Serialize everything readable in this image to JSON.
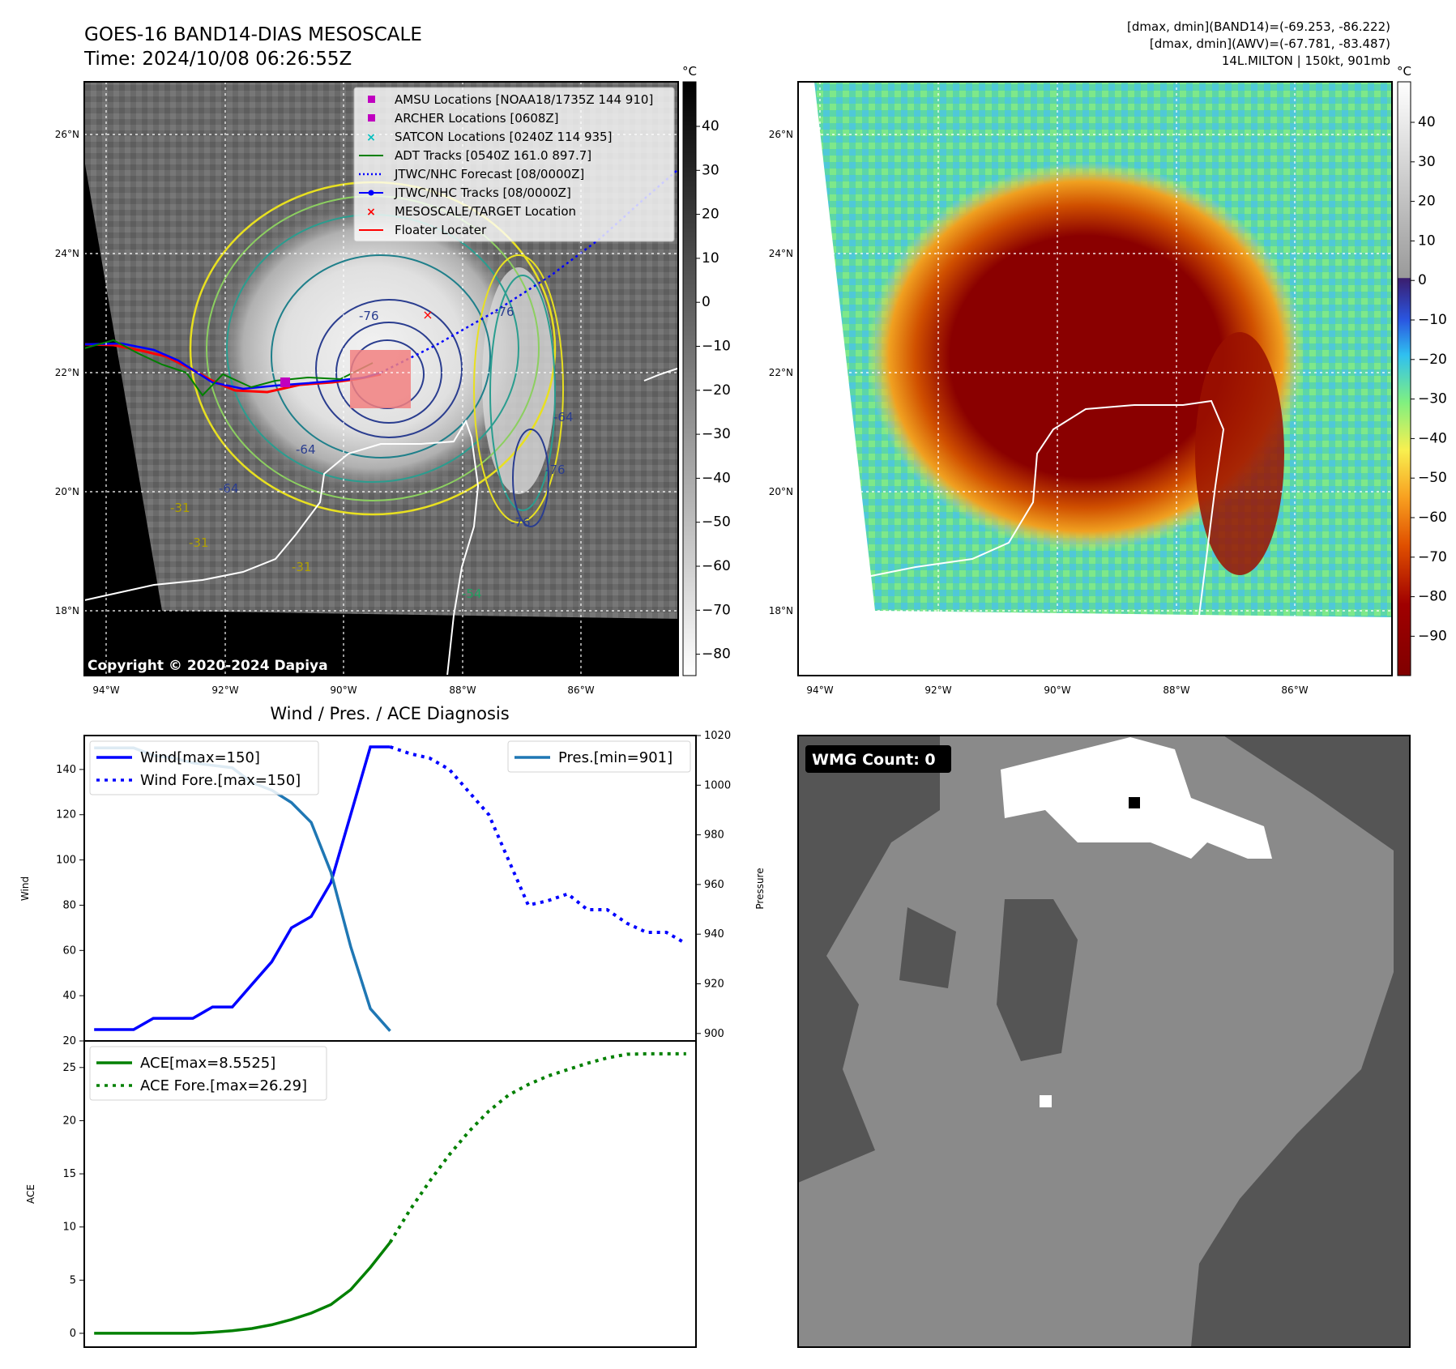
{
  "header": {
    "title_line1": "GOES-16 BAND14-DIAS MESOSCALE",
    "title_line2": "Time: 2024/10/08 06:26:55Z",
    "stats_line1": "[dmax, dmin](BAND14)=(-69.253, -86.222)",
    "stats_line2": "[dmax, dmin](AWV)=(-67.781, -83.487)",
    "stats_line3": "14L.MILTON | 150kt, 901mb"
  },
  "map": {
    "lat_labels": [
      "26°N",
      "24°N",
      "22°N",
      "20°N",
      "18°N"
    ],
    "lon_labels": [
      "94°W",
      "92°W",
      "90°W",
      "88°W",
      "86°W"
    ],
    "copyright": "Copyright © 2020-2024 Dapiya",
    "contour_labels": [
      "-76",
      "-76",
      "-64",
      "-64",
      "-64",
      "-76",
      "-76",
      "-54",
      "-31",
      "-31",
      "-31"
    ],
    "legend": [
      {
        "label": "AMSU Locations [NOAA18/1735Z 144 910]",
        "color": "#c000c0",
        "marker": "square"
      },
      {
        "label": "ARCHER Locations [0608Z]",
        "color": "#c000c0",
        "marker": "square"
      },
      {
        "label": "SATCON Locations [0240Z 114 935]",
        "color": "#00bfbf",
        "marker": "x"
      },
      {
        "label": "ADT Tracks [0540Z 161.0 897.7]",
        "color": "#008000",
        "marker": "line"
      },
      {
        "label": "JTWC/NHC Forecast [08/0000Z]",
        "color": "#0000ff",
        "marker": "dotted"
      },
      {
        "label": "JTWC/NHC Tracks [08/0000Z]",
        "color": "#0000ff",
        "marker": "line-dot"
      },
      {
        "label": "MESOSCALE/TARGET Location",
        "color": "#ff0000",
        "marker": "x"
      },
      {
        "label": "Floater Locater",
        "color": "#ff0000",
        "marker": "line"
      }
    ]
  },
  "colorbar_gray": {
    "unit": "°C",
    "ticks": [
      "40",
      "30",
      "20",
      "10",
      "0",
      "−10",
      "−20",
      "−30",
      "−40",
      "−50",
      "−60",
      "−70",
      "−80"
    ]
  },
  "colorbar_color": {
    "unit": "°C",
    "ticks": [
      "40",
      "30",
      "20",
      "10",
      "0",
      "−10",
      "−20",
      "−30",
      "−40",
      "−50",
      "−60",
      "−70",
      "−80",
      "−90"
    ]
  },
  "wmg_panel": {
    "label": "WMG Count: 0"
  },
  "chart_data": [
    {
      "type": "line",
      "title": "Wind / Pres. / ACE Diagnosis",
      "ylabel": "Wind",
      "ylabel_right": "Pressure",
      "ylim": [
        20,
        155
      ],
      "ylim_right": [
        897,
        1020
      ],
      "yticks": [
        20,
        40,
        60,
        80,
        100,
        120,
        140
      ],
      "yticks_right": [
        900,
        920,
        940,
        960,
        980,
        1000,
        1020
      ],
      "xlim": [
        -0.5,
        30.5
      ],
      "series": [
        {
          "name": "Wind[max=150]",
          "axis": "left",
          "style": "solid",
          "color": "#0000ff",
          "x": [
            0,
            1,
            2,
            3,
            4,
            5,
            6,
            7,
            8,
            9,
            10,
            11,
            12,
            13,
            14,
            15
          ],
          "values": [
            25,
            25,
            25,
            30,
            30,
            30,
            35,
            35,
            45,
            55,
            70,
            75,
            90,
            120,
            150,
            150
          ]
        },
        {
          "name": "Wind Fore.[max=150]",
          "axis": "left",
          "style": "dotted",
          "color": "#0000ff",
          "x": [
            15,
            16,
            17,
            18,
            19,
            20,
            21,
            22,
            23,
            24,
            25,
            26,
            27,
            28,
            29,
            30
          ],
          "values": [
            150,
            147,
            145,
            140,
            130,
            120,
            100,
            80,
            82,
            85,
            78,
            78,
            72,
            68,
            68,
            63
          ]
        },
        {
          "name": "Pres.[min=901]",
          "axis": "right",
          "style": "solid",
          "color": "#1f77b4",
          "x": [
            0,
            1,
            2,
            3,
            4,
            5,
            6,
            7,
            8,
            9,
            10,
            11,
            12,
            13,
            14,
            15
          ],
          "values": [
            1015,
            1015,
            1015,
            1012,
            1011,
            1009,
            1008,
            1007,
            1001,
            998,
            993,
            985,
            965,
            935,
            910,
            901
          ]
        },
        {
          "name": "ACE[max=8.5525]",
          "axis": "ace",
          "style": "solid",
          "color": "#008000",
          "x": [
            0,
            1,
            2,
            3,
            4,
            5,
            6,
            7,
            8,
            9,
            10,
            11,
            12,
            13,
            14,
            15
          ],
          "values": [
            0,
            0,
            0,
            0,
            0,
            0,
            0.1,
            0.25,
            0.45,
            0.8,
            1.3,
            1.9,
            2.7,
            4.1,
            6.2,
            8.55
          ]
        },
        {
          "name": "ACE Fore.[max=26.29]",
          "axis": "ace",
          "style": "dotted",
          "color": "#008000",
          "x": [
            15,
            16,
            17,
            18,
            19,
            20,
            21,
            22,
            23,
            24,
            25,
            26,
            27,
            28,
            29,
            30
          ],
          "values": [
            8.55,
            11.6,
            14.3,
            16.8,
            19.0,
            20.9,
            22.4,
            23.4,
            24.2,
            24.8,
            25.4,
            25.9,
            26.25,
            26.29,
            26.29,
            26.29
          ]
        }
      ],
      "ace_ylabel": "ACE",
      "ace_ylim": [
        -1.3,
        27.5
      ],
      "ace_yticks": [
        0,
        5,
        10,
        15,
        20,
        25
      ]
    }
  ],
  "colors": {
    "wind": "#0000ff",
    "pressure": "#1f77b4",
    "ace": "#008000",
    "track_red": "#ff0000",
    "cone": "#f28080"
  }
}
